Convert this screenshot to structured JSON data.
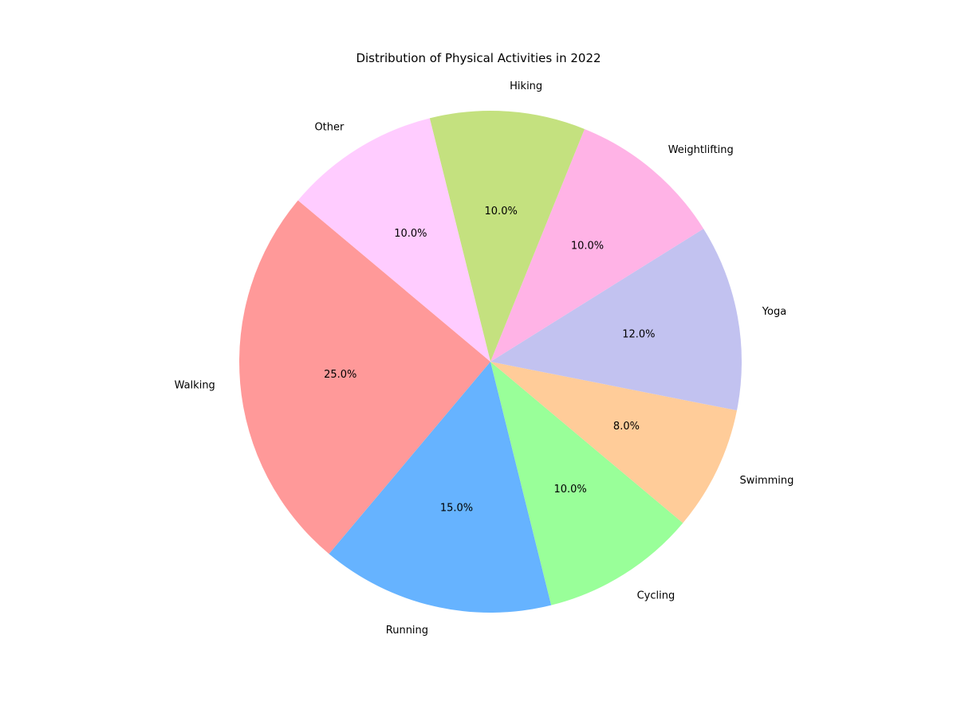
{
  "chart_data": {
    "type": "pie",
    "title": "Distribution of Physical Activities in 2022",
    "categories": [
      "Walking",
      "Running",
      "Cycling",
      "Swimming",
      "Yoga",
      "Weightlifting",
      "Hiking",
      "Other"
    ],
    "values": [
      25.0,
      15.0,
      10.0,
      8.0,
      12.0,
      10.0,
      10.0,
      10.0
    ],
    "pct_labels": [
      "25.0%",
      "15.0%",
      "10.0%",
      "8.0%",
      "12.0%",
      "10.0%",
      "10.0%",
      "10.0%"
    ],
    "colors": [
      "#ff9999",
      "#66b3ff",
      "#99ff99",
      "#ffcc99",
      "#c2c2f0",
      "#ffb3e6",
      "#c4e17f",
      "#ffccff"
    ],
    "start_angle_deg": 140,
    "direction": "counterclockwise"
  }
}
